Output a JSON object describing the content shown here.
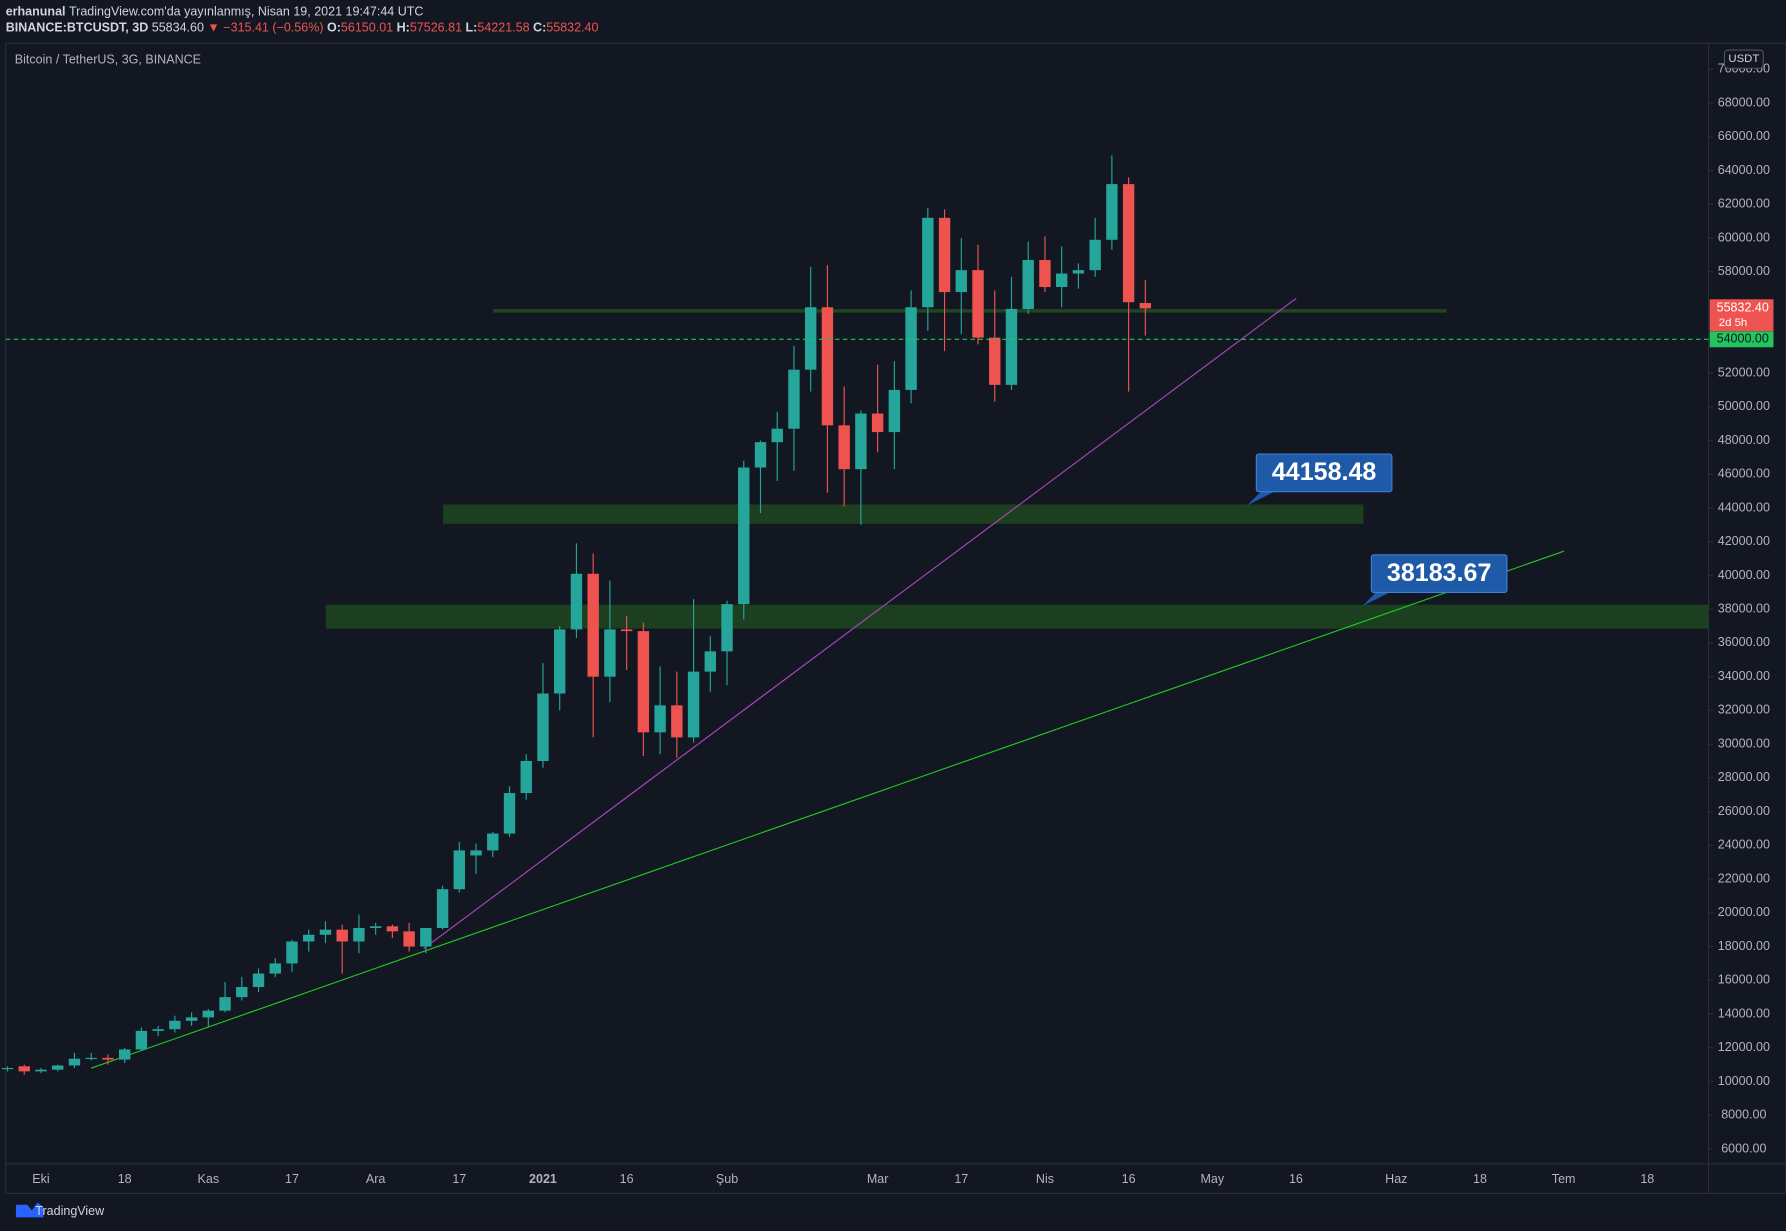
{
  "header": {
    "publisher": "erhanunal",
    "published": "TradingView.com'da yayınlanmış, Nisan 19, 2021 19:47:44 UTC",
    "symbol": "BINANCE:BTCUSDT, 3D",
    "last": "55834.60",
    "change": "▼ −315.41 (−0.56%)",
    "o_label": "O:",
    "o": "56150.01",
    "h_label": "H:",
    "h": "57526.81",
    "l_label": "L:",
    "l": "54221.58",
    "c_label": "C:",
    "c": "55832.40"
  },
  "footer": {
    "brand": "TradingView"
  },
  "chart_data": {
    "type": "candlestick",
    "title": "Bitcoin / TetherUS, 3G, BINANCE",
    "currency": "USDT",
    "up_color": "#26a69a",
    "down_color": "#ef5350",
    "categories": [
      null,
      null,
      "Eki",
      null,
      null,
      null,
      null,
      "18",
      null,
      null,
      null,
      null,
      "Kas",
      null,
      null,
      null,
      null,
      "17",
      null,
      null,
      null,
      null,
      "Ara",
      null,
      null,
      null,
      null,
      "17",
      null,
      null,
      null,
      null,
      "2021",
      null,
      null,
      null,
      null,
      "16",
      null,
      null,
      null,
      null,
      null,
      "Şub",
      null,
      null,
      null,
      null,
      null,
      null,
      null,
      null,
      "Mar",
      null,
      null,
      null,
      null,
      "17",
      null,
      null,
      null,
      null,
      "Nis",
      null,
      null,
      null,
      null,
      "16",
      null,
      null,
      null,
      null,
      "May",
      null,
      null,
      null,
      null,
      "16",
      null,
      null,
      null,
      null,
      null,
      "Haz",
      null,
      null,
      null,
      null,
      "18",
      null,
      null,
      null,
      null,
      "Tem",
      null,
      null,
      null,
      null,
      "18",
      null,
      null,
      null
    ],
    "open": [
      10750,
      10900,
      10600,
      10700,
      10950,
      11350,
      11400,
      11300,
      11900,
      13000,
      13100,
      13600,
      13800,
      14200,
      15000,
      15600,
      16400,
      17000,
      18300,
      18700,
      19000,
      18300,
      19100,
      19200,
      18900,
      18000,
      19100,
      21400,
      23400,
      23700,
      24700,
      27100,
      29000,
      33000,
      36800,
      40100,
      34000,
      36800,
      36700,
      30700,
      32300,
      30400,
      34300,
      35500,
      38300,
      46400,
      47900,
      48700,
      52200,
      55900,
      48900,
      46300,
      49600,
      48500,
      51000,
      55900,
      61200,
      56800,
      58100,
      54100,
      51300,
      55800,
      58700,
      57100,
      57900,
      58100,
      59900,
      63200,
      56150.01,
      null,
      null,
      null,
      null,
      null,
      null,
      null,
      null,
      null,
      null,
      null,
      null,
      null,
      null,
      null,
      null,
      null,
      null,
      null,
      null,
      null,
      null,
      null,
      null,
      null,
      null,
      null,
      null,
      null,
      null,
      null,
      null,
      null
    ],
    "high": [
      10900,
      11000,
      10800,
      11000,
      11700,
      11700,
      11600,
      12000,
      13200,
      13300,
      13900,
      14100,
      14300,
      15900,
      16200,
      16700,
      17300,
      18400,
      19000,
      19500,
      19300,
      19900,
      19400,
      19300,
      19400,
      19100,
      21600,
      24200,
      24100,
      24800,
      27500,
      29400,
      34800,
      37000,
      41900,
      41300,
      39700,
      37600,
      37200,
      34600,
      34300,
      38600,
      36400,
      38500,
      46800,
      48000,
      49700,
      53600,
      58300,
      58400,
      51200,
      49800,
      52500,
      52700,
      56900,
      61800,
      61700,
      60000,
      59600,
      56900,
      57700,
      59800,
      60100,
      59500,
      58500,
      61200,
      64900,
      63600,
      57526.81,
      null,
      null,
      null,
      null,
      null,
      null,
      null,
      null,
      null,
      null,
      null,
      null,
      null,
      null,
      null,
      null,
      null,
      null,
      null,
      null,
      null,
      null,
      null,
      null,
      null,
      null,
      null,
      null,
      null,
      null,
      null,
      null,
      null
    ],
    "low": [
      10600,
      10400,
      10500,
      10600,
      10800,
      11250,
      11000,
      11100,
      11800,
      12700,
      12900,
      13300,
      13200,
      14100,
      14800,
      15300,
      16200,
      16500,
      17700,
      18200,
      16400,
      17600,
      18700,
      18500,
      17700,
      17600,
      19000,
      21200,
      22300,
      23300,
      24500,
      26700,
      28600,
      32000,
      36300,
      30400,
      32500,
      34400,
      29300,
      29400,
      29200,
      30100,
      33100,
      33500,
      37400,
      43700,
      45600,
      46200,
      50900,
      44900,
      44100,
      43000,
      47300,
      46300,
      50200,
      54500,
      53300,
      54300,
      53700,
      50300,
      51000,
      55500,
      56800,
      55900,
      57000,
      57700,
      59300,
      50900,
      54221.58,
      null,
      null,
      null,
      null,
      null,
      null,
      null,
      null,
      null,
      null,
      null,
      null,
      null,
      null,
      null,
      null,
      null,
      null,
      null,
      null,
      null,
      null,
      null,
      null,
      null,
      null,
      null,
      null,
      null,
      null,
      null,
      null,
      null
    ],
    "close": [
      10800,
      10600,
      10700,
      10950,
      11350,
      11400,
      11300,
      11900,
      13000,
      13100,
      13600,
      13800,
      14200,
      15000,
      15600,
      16400,
      17000,
      18300,
      18700,
      19000,
      18300,
      19100,
      19200,
      18900,
      18000,
      19100,
      21400,
      23700,
      23700,
      24700,
      27100,
      29000,
      33000,
      36800,
      40100,
      34000,
      36800,
      36700,
      30700,
      32300,
      30400,
      34300,
      35500,
      38300,
      46400,
      47900,
      48700,
      52200,
      55900,
      48900,
      46300,
      49600,
      48500,
      51000,
      55900,
      61200,
      56800,
      58100,
      54100,
      51300,
      55800,
      58700,
      57100,
      57900,
      58100,
      59900,
      63200,
      56200,
      55832.4,
      null,
      null,
      null,
      null,
      null,
      null,
      null,
      null,
      null,
      null,
      null,
      null,
      null,
      null,
      null,
      null,
      null,
      null,
      null,
      null,
      null,
      null,
      null,
      null,
      null,
      null,
      null,
      null,
      null,
      null,
      null,
      null,
      null
    ],
    "ylim": [
      5120,
      71550
    ],
    "yticks": [
      {
        "value": 70000,
        "label": "70000.00"
      },
      {
        "value": 68000,
        "label": "68000.00"
      },
      {
        "value": 66000,
        "label": "66000.00"
      },
      {
        "value": 64000,
        "label": "64000.00"
      },
      {
        "value": 62000,
        "label": "62000.00"
      },
      {
        "value": 60000,
        "label": "60000.00"
      },
      {
        "value": 58000,
        "label": "58000.00"
      },
      {
        "value": 56000,
        "label": "56000.00"
      },
      {
        "value": 54000,
        "label": "54000.00"
      },
      {
        "value": 52000,
        "label": "52000.00"
      },
      {
        "value": 50000,
        "label": "50000.00"
      },
      {
        "value": 48000,
        "label": "48000.00"
      },
      {
        "value": 46000,
        "label": "46000.00"
      },
      {
        "value": 44000,
        "label": "44000.00"
      },
      {
        "value": 42000,
        "label": "42000.00"
      },
      {
        "value": 40000,
        "label": "40000.00"
      },
      {
        "value": 38000,
        "label": "38000.00"
      },
      {
        "value": 36000,
        "label": "36000.00"
      },
      {
        "value": 34000,
        "label": "34000.00"
      },
      {
        "value": 32000,
        "label": "32000.00"
      },
      {
        "value": 30000,
        "label": "30000.00"
      },
      {
        "value": 28000,
        "label": "28000.00"
      },
      {
        "value": 26000,
        "label": "26000.00"
      },
      {
        "value": 24000,
        "label": "24000.00"
      },
      {
        "value": 22000,
        "label": "22000.00"
      },
      {
        "value": 20000,
        "label": "20000.00"
      },
      {
        "value": 18000,
        "label": "18000.00"
      },
      {
        "value": 16000,
        "label": "16000.00"
      },
      {
        "value": 14000,
        "label": "14000.00"
      },
      {
        "value": 12000,
        "label": "12000.00"
      },
      {
        "value": 10000,
        "label": "10000.00"
      },
      {
        "value": 8000,
        "label": "8000.00"
      },
      {
        "value": 6000,
        "label": "6000.00"
      }
    ],
    "price_tag": {
      "value": 55832.4,
      "label": "55832.40",
      "countdown": "2d 5h",
      "color": "#ef5350"
    },
    "alert_line": {
      "value": 54000,
      "label": "54000.00",
      "color": "#22c55e"
    },
    "callouts": [
      {
        "value": 44158.48,
        "label": "44158.48"
      },
      {
        "value": 38183.67,
        "label": "38183.67"
      }
    ]
  }
}
